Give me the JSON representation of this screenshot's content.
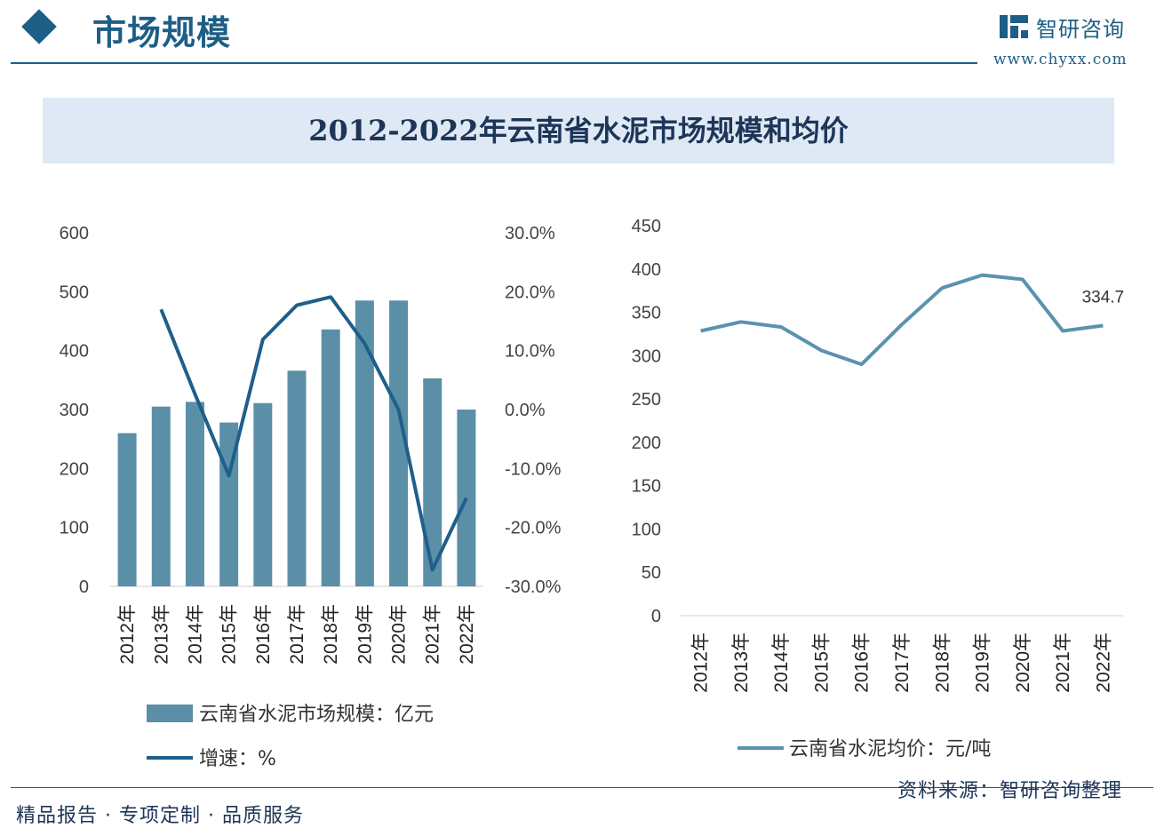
{
  "header": {
    "title": "市场规模",
    "brand_name": "智研咨询",
    "brand_url": "www.chyxx.com"
  },
  "banner": {
    "title": "2012-2022年云南省水泥市场规模和均价"
  },
  "footer": {
    "left": "精品报告 · 专项定制 · 品质服务",
    "right": "资料来源：智研咨询整理"
  },
  "colors": {
    "bar": "#5b8fa8",
    "growth_line": "#1f5f8b",
    "price_line": "#5b92b0",
    "accent": "#1d5e86"
  },
  "chart_data": [
    {
      "type": "bar",
      "categories": [
        "2012年",
        "2013年",
        "2014年",
        "2015年",
        "2016年",
        "2017年",
        "2018年",
        "2019年",
        "2020年",
        "2021年",
        "2022年"
      ],
      "series": [
        {
          "name": "云南省水泥市场规模：亿元",
          "type": "bar",
          "axis": "left",
          "values": [
            260,
            305,
            313,
            278,
            311,
            366,
            436,
            485,
            485,
            353,
            300
          ]
        },
        {
          "name": "增速：%",
          "type": "line",
          "axis": "right",
          "values": [
            null,
            17.0,
            2.6,
            -11.2,
            11.9,
            17.7,
            19.1,
            11.2,
            0.0,
            -27.2,
            -15.0
          ]
        }
      ],
      "yticks_left": [
        "0",
        "100",
        "200",
        "300",
        "400",
        "500",
        "600"
      ],
      "yticks_right": [
        "-30.0%",
        "-20.0%",
        "-10.0%",
        "0.0%",
        "10.0%",
        "20.0%",
        "30.0%"
      ],
      "ylim_left": [
        0,
        600
      ],
      "ylim_right": [
        -30,
        30
      ],
      "legend": [
        "云南省水泥市场规模：亿元",
        "增速：%"
      ],
      "legend_position": "bottom",
      "grid": false
    },
    {
      "type": "line",
      "categories": [
        "2012年",
        "2013年",
        "2014年",
        "2015年",
        "2016年",
        "2017年",
        "2018年",
        "2019年",
        "2020年",
        "2021年",
        "2022年"
      ],
      "series": [
        {
          "name": "云南省水泥均价：元/吨",
          "values": [
            328.5,
            339.0,
            333.0,
            306.0,
            290.0,
            336.0,
            378.0,
            393.0,
            388.0,
            328.5,
            334.7
          ]
        }
      ],
      "yticks": [
        "0",
        "50",
        "100",
        "150",
        "200",
        "250",
        "300",
        "350",
        "400",
        "450"
      ],
      "ylim": [
        0,
        450
      ],
      "annotation": "334.7",
      "legend_position": "bottom",
      "grid": false
    }
  ]
}
